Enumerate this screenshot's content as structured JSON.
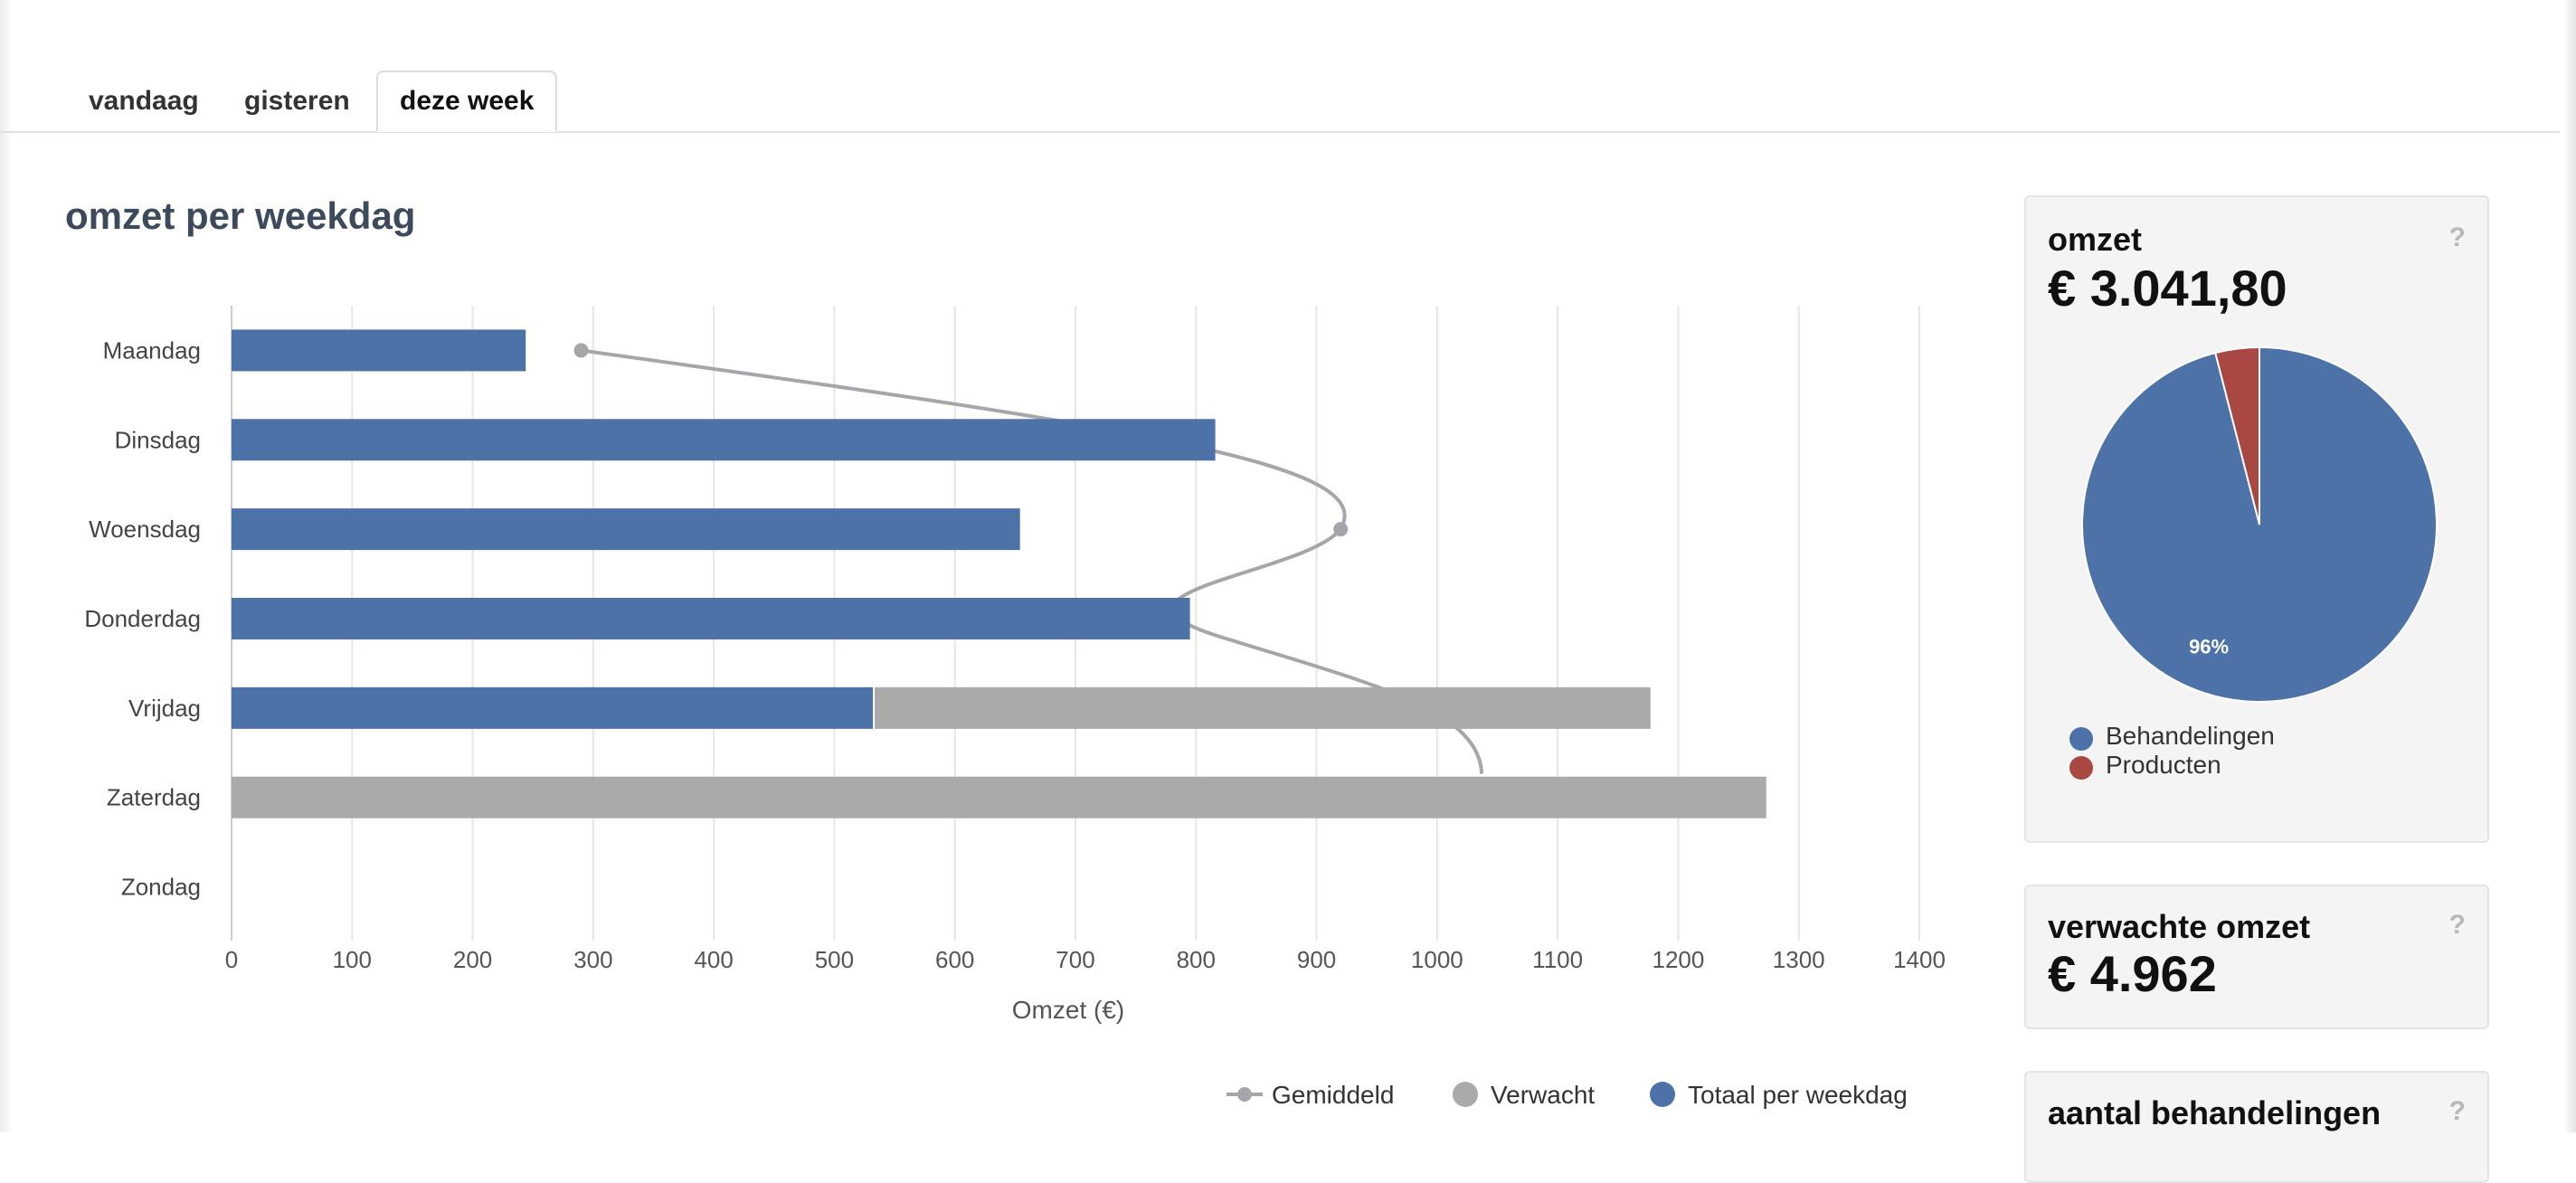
{
  "tabs": [
    {
      "label": "vandaag",
      "active": false
    },
    {
      "label": "gisteren",
      "active": false
    },
    {
      "label": "deze week",
      "active": true
    }
  ],
  "page_title": "omzet per weekdag",
  "chart_data": {
    "type": "bar",
    "orientation": "horizontal",
    "stacked": true,
    "categories": [
      "Maandag",
      "Dinsdag",
      "Woensdag",
      "Donderdag",
      "Vrijdag",
      "Zaterdag",
      "Zondag"
    ],
    "series": [
      {
        "name": "Gemiddeld",
        "type": "line",
        "color": "#a6a6aa",
        "values": [
          290,
          null,
          920,
          null,
          null,
          null,
          null
        ]
      },
      {
        "name": "Verwacht",
        "type": "bar",
        "color": "#aaaaaa",
        "values": [
          0,
          0,
          0,
          0,
          645,
          1273,
          0
        ]
      },
      {
        "name": "Totaal per weekdag",
        "type": "bar",
        "color": "#4c72a8",
        "values": [
          244,
          816,
          654,
          795,
          532,
          0,
          0
        ]
      }
    ],
    "xlabel": "Omzet (€)",
    "xlim": [
      0,
      1400
    ],
    "xticks": [
      0,
      100,
      200,
      300,
      400,
      500,
      600,
      700,
      800,
      900,
      1000,
      1100,
      1200,
      1300,
      1400
    ],
    "grid": true,
    "legend": "bottom-right"
  },
  "omzet_panel": {
    "title": "omzet",
    "value": "€ 3.041,80",
    "help": "?",
    "pie": {
      "slices": [
        {
          "name": "Behandelingen",
          "value": 96,
          "color": "#4c72a8",
          "label": "96%"
        },
        {
          "name": "Producten",
          "value": 4,
          "color": "#a94843"
        }
      ]
    }
  },
  "verwachte_panel": {
    "title": "verwachte omzet",
    "value": "€ 4.962",
    "help": "?"
  },
  "behandelingen_panel": {
    "title": "aantal behandelingen",
    "help": "?"
  }
}
